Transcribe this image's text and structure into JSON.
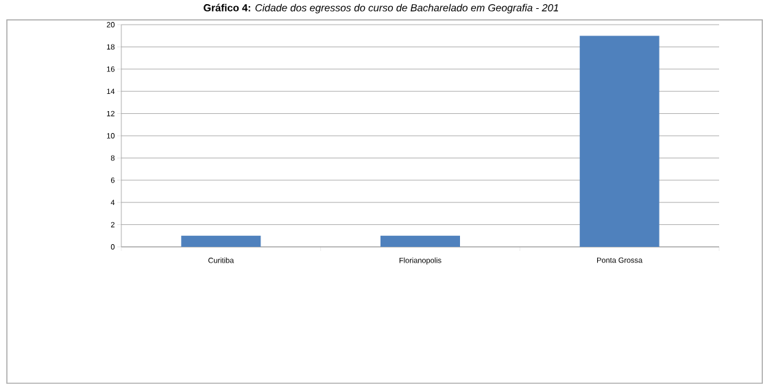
{
  "chart_data": {
    "type": "bar",
    "title": "**Gráfico 4:** *Cidade dos egressos do curso de Bacharelado em Geografia - 201*",
    "categories": [
      "Curitiba",
      "Florianopolis",
      "Ponta Grossa"
    ],
    "values": [
      1,
      1,
      19
    ],
    "color": "#4f81bd",
    "ylim": [
      0,
      20
    ],
    "yticks": [
      0,
      2,
      4,
      6,
      8,
      10,
      12,
      14,
      16,
      18,
      20
    ],
    "grid": "y"
  }
}
